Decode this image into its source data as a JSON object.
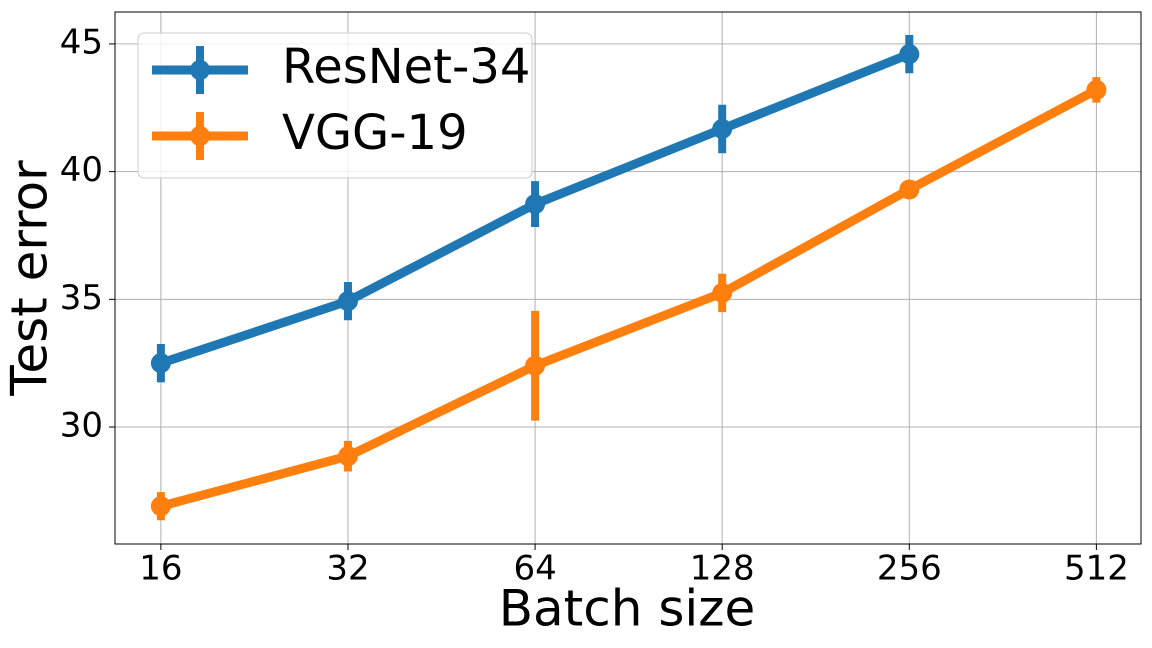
{
  "chart_data": {
    "type": "line",
    "x_label": "Batch size",
    "y_label": "Test error",
    "x": [
      16,
      32,
      64,
      128,
      256,
      512
    ],
    "series": [
      {
        "name": "ResNet-34",
        "color": "#1f77b4",
        "values": [
          32.5,
          34.93,
          38.73,
          41.67,
          44.6,
          null
        ],
        "errors": [
          0.75,
          0.75,
          0.9,
          0.95,
          0.75,
          null
        ]
      },
      {
        "name": "VGG-19",
        "color": "#ff7f0e",
        "values": [
          26.9,
          28.86,
          32.4,
          35.25,
          39.3,
          43.2
        ],
        "errors": [
          0.55,
          0.6,
          2.15,
          0.75,
          0.35,
          0.5
        ]
      }
    ],
    "xscale": "log",
    "xbase": 2,
    "xlim": [
      13.5,
      604
    ],
    "xticks": [
      16,
      32,
      64,
      128,
      256,
      512
    ],
    "ylim": [
      25.42,
      46.25
    ],
    "yticks": [
      30,
      35,
      40,
      45
    ],
    "grid": true,
    "legend": "upper left"
  }
}
